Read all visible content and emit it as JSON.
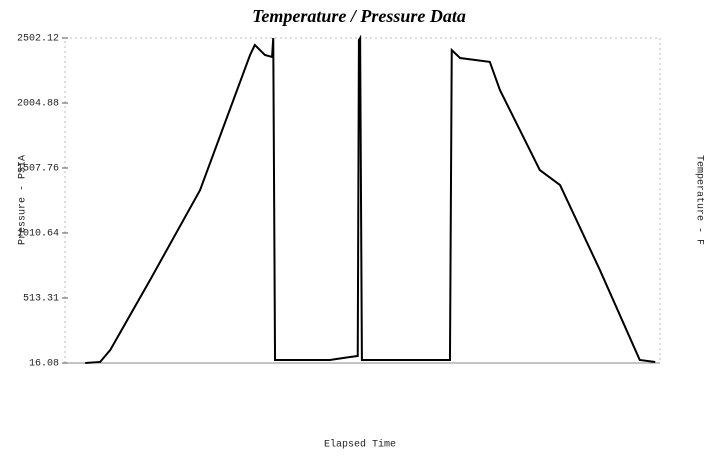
{
  "chart_data": {
    "type": "line",
    "title": "Temperature / Pressure Data",
    "y_label": "Pressure - PSIA",
    "y2_label": "Temperature - F",
    "x_label": "Elapsed Time",
    "xlim": [
      0,
      100
    ],
    "ylim": [
      16.08,
      2502.12
    ],
    "yticks": [
      16.08,
      513.31,
      1010.64,
      1507.76,
      2004.88,
      2502.12
    ],
    "series": [
      {
        "name": "Pressure",
        "color": "#000000",
        "x": [
          3.4,
          5.9,
          7.6,
          14.3,
          22.7,
          31.1,
          31.9,
          33.6,
          34.8,
          35.0,
          35.3,
          44.5,
          47.9,
          49.2,
          49.4,
          49.6,
          49.9,
          64.7,
          65.0,
          66.4,
          71.4,
          73.1,
          79.8,
          83.2,
          89.9,
          96.6,
          99.2
        ],
        "values": [
          16,
          24,
          115,
          651,
          1339,
          2372,
          2449,
          2372,
          2357,
          2502,
          39,
          39,
          62,
          70,
          2487,
          2502,
          39,
          39,
          2410,
          2349,
          2319,
          2104,
          1492,
          1377,
          727,
          39,
          24
        ]
      }
    ]
  }
}
